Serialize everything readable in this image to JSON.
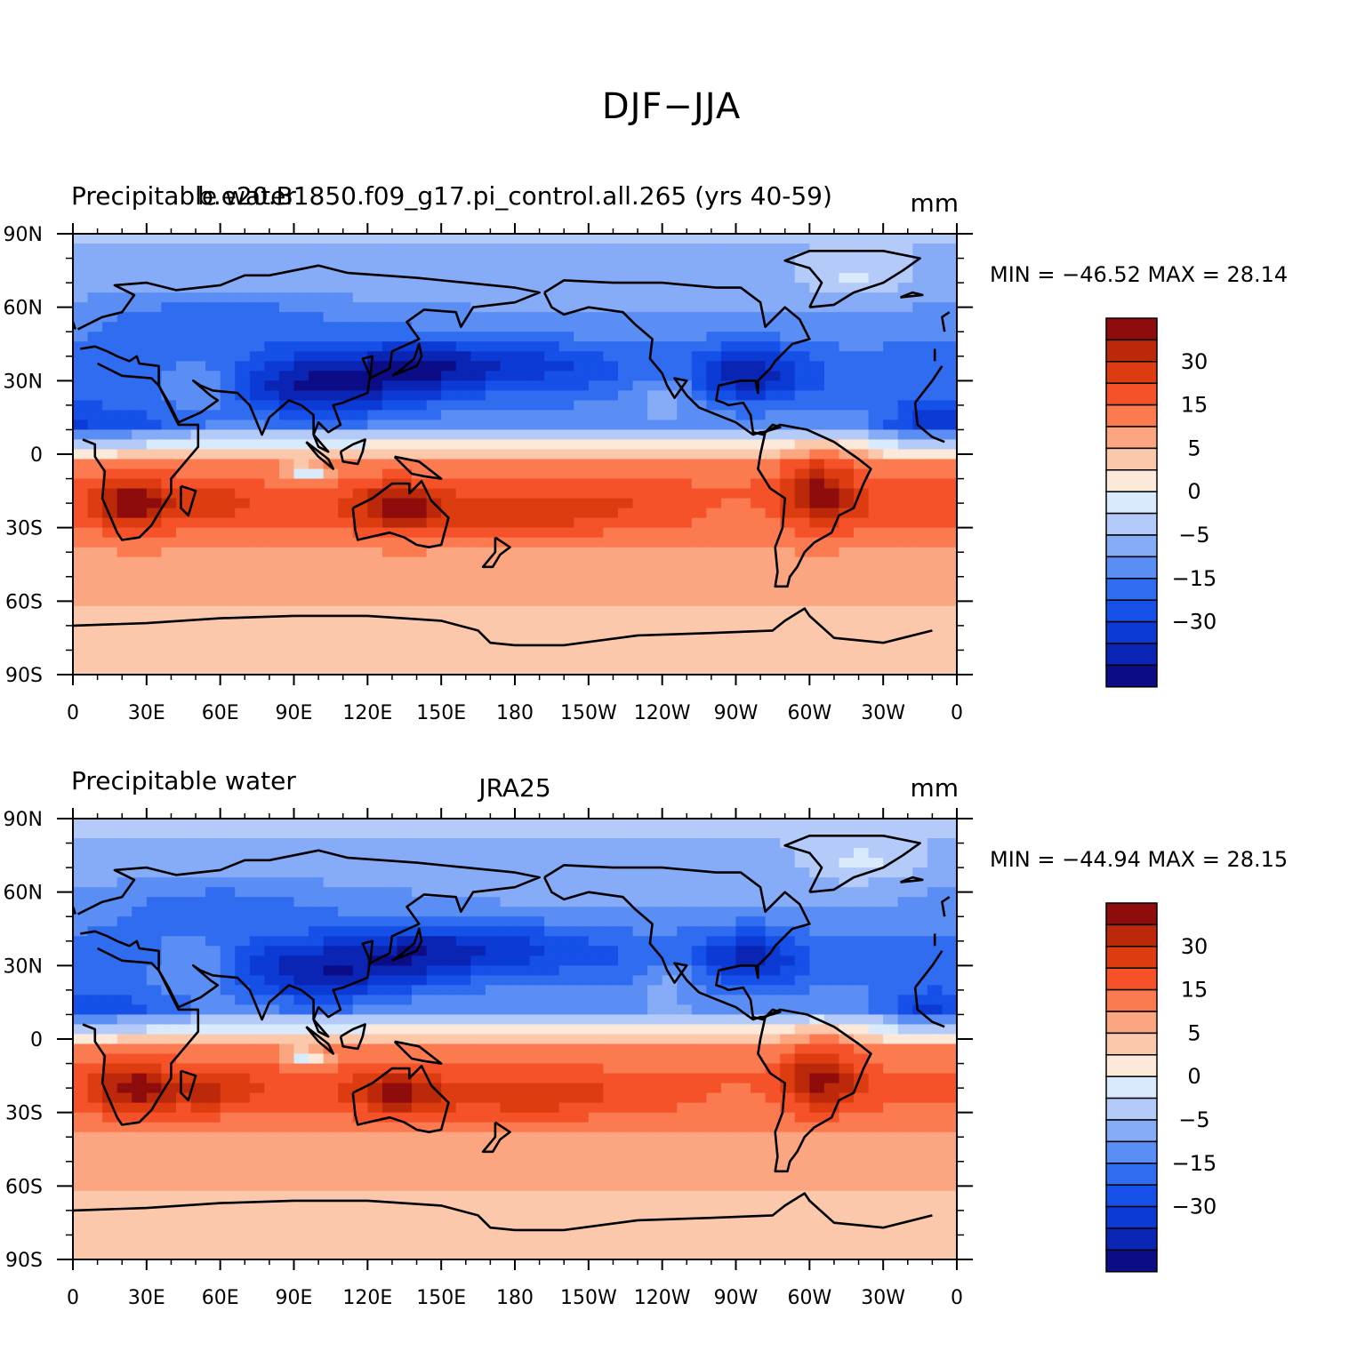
{
  "page_title": "DJF−JJA",
  "panels": [
    {
      "left_title": "Precipitable water",
      "center_title": "b.e20.B1850.f09_g17.pi_control.all.265 (yrs 40-59)",
      "units": "mm",
      "stats": "MIN = −46.52  MAX =   28.14"
    },
    {
      "left_title": "Precipitable water",
      "center_title": "JRA25",
      "units": "mm",
      "stats": "MIN = −44.94  MAX =   28.15"
    }
  ],
  "chart_data": [
    {
      "type": "heatmap",
      "title": "b.e20.B1850.f09_g17.pi_control.all.265 (yrs 40-59)",
      "xlabel": "",
      "ylabel": "",
      "x_ticks": [
        "0",
        "30E",
        "60E",
        "90E",
        "120E",
        "150E",
        "180",
        "150W",
        "120W",
        "90W",
        "60W",
        "30W",
        "0"
      ],
      "y_ticks": [
        "90N",
        "60N",
        "30N",
        "0",
        "30S",
        "60S",
        "90S"
      ],
      "x_range": [
        0,
        360
      ],
      "y_range": [
        -90,
        90
      ],
      "min": -46.52,
      "max": 28.14,
      "colorbar": {
        "levels": [
          -40,
          -35,
          -30,
          -25,
          -20,
          -15,
          -10,
          -5,
          -2,
          0,
          2,
          5,
          10,
          15,
          20,
          25,
          30,
          35
        ],
        "labels": [
          "30",
          "15",
          "5",
          "0",
          "−5",
          "−15",
          "−30"
        ],
        "colors": [
          "#0c0c86",
          "#0a24b4",
          "#0c3ad4",
          "#1550e8",
          "#2f6cf0",
          "#5a8ef4",
          "#86abf7",
          "#b4cbfa",
          "#daeafd",
          "#fde9d9",
          "#fcc8ac",
          "#fba680",
          "#fb7a50",
          "#f5522a",
          "#dd3c10",
          "#bb280a",
          "#8e0c0c"
        ]
      },
      "fields": {
        "north_mid_lat": "negative (-20 to -40 mm)",
        "southern_subtropics": "positive (5 to 30 mm)",
        "antarctica": "near 0 to 5 mm"
      }
    },
    {
      "type": "heatmap",
      "title": "JRA25",
      "xlabel": "",
      "ylabel": "",
      "x_ticks": [
        "0",
        "30E",
        "60E",
        "90E",
        "120E",
        "150E",
        "180",
        "150W",
        "120W",
        "90W",
        "60W",
        "30W",
        "0"
      ],
      "y_ticks": [
        "90N",
        "60N",
        "30N",
        "0",
        "30S",
        "60S",
        "90S"
      ],
      "x_range": [
        0,
        360
      ],
      "y_range": [
        -90,
        90
      ],
      "min": -44.94,
      "max": 28.15,
      "colorbar": {
        "levels": [
          -40,
          -35,
          -30,
          -25,
          -20,
          -15,
          -10,
          -5,
          -2,
          0,
          2,
          5,
          10,
          15,
          20,
          25,
          30,
          35
        ],
        "labels": [
          "30",
          "15",
          "5",
          "0",
          "−5",
          "−15",
          "−30"
        ],
        "colors": [
          "#0c0c86",
          "#0a24b4",
          "#0c3ad4",
          "#1550e8",
          "#2f6cf0",
          "#5a8ef4",
          "#86abf7",
          "#b4cbfa",
          "#daeafd",
          "#fde9d9",
          "#fcc8ac",
          "#fba680",
          "#fb7a50",
          "#f5522a",
          "#dd3c10",
          "#bb280a",
          "#8e0c0c"
        ]
      },
      "fields": {
        "north_mid_lat": "negative (-20 to -40 mm)",
        "southern_subtropics": "positive (5 to 30 mm)",
        "antarctica": "near 0 to 5 mm"
      }
    }
  ]
}
